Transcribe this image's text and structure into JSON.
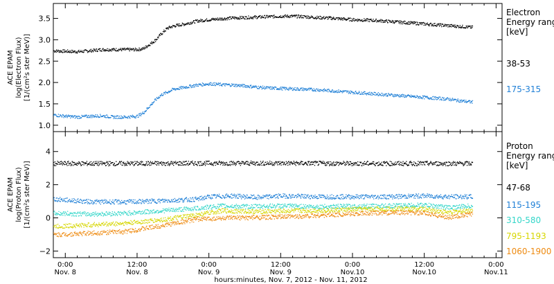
{
  "footer": {
    "xlabel": "hours:minutes, Nov.  7, 2012 - Nov. 11, 2012",
    "ticks": [
      {
        "time": "0:00",
        "date": "Nov. 8",
        "h": 0
      },
      {
        "time": "12:00",
        "date": "Nov. 8",
        "h": 12
      },
      {
        "time": "0:00",
        "date": "Nov. 9",
        "h": 24
      },
      {
        "time": "12:00",
        "date": "Nov. 9",
        "h": 36
      },
      {
        "time": "0:00",
        "date": "Nov.10",
        "h": 48
      },
      {
        "time": "12:00",
        "date": "Nov.10",
        "h": 60
      },
      {
        "time": "0:00",
        "date": "Nov.11",
        "h": 72
      }
    ]
  },
  "chart_data": [
    {
      "type": "scatter",
      "ylabel_lines": [
        "ACE EPAM",
        "log(Electron Flux)",
        "[1/(cm²s ster MeV)]"
      ],
      "legend_title_lines": [
        "Electron",
        "Energy range",
        "[keV]"
      ],
      "xlim_hours": [
        -2,
        73
      ],
      "ylim": [
        0.85,
        3.85
      ],
      "yticks": [
        "1.0",
        "1.5",
        "2.0",
        "2.5",
        "3.0",
        "3.5"
      ],
      "ytick_values": [
        1.0,
        1.5,
        2.0,
        2.5,
        3.0,
        3.5
      ],
      "series": [
        {
          "name": "38-53",
          "color": "#000000",
          "points": [
            [
              -2,
              2.75
            ],
            [
              0,
              2.74
            ],
            [
              2,
              2.73
            ],
            [
              4,
              2.75
            ],
            [
              6,
              2.78
            ],
            [
              8,
              2.78
            ],
            [
              10,
              2.78
            ],
            [
              12,
              2.78
            ],
            [
              13,
              2.8
            ],
            [
              14,
              2.9
            ],
            [
              15,
              3.0
            ],
            [
              16,
              3.15
            ],
            [
              17,
              3.28
            ],
            [
              18,
              3.33
            ],
            [
              20,
              3.38
            ],
            [
              22,
              3.45
            ],
            [
              24,
              3.48
            ],
            [
              26,
              3.5
            ],
            [
              28,
              3.52
            ],
            [
              30,
              3.53
            ],
            [
              32,
              3.54
            ],
            [
              34,
              3.55
            ],
            [
              36,
              3.56
            ],
            [
              38,
              3.56
            ],
            [
              40,
              3.55
            ],
            [
              42,
              3.53
            ],
            [
              44,
              3.52
            ],
            [
              46,
              3.5
            ],
            [
              48,
              3.48
            ],
            [
              50,
              3.47
            ],
            [
              52,
              3.46
            ],
            [
              54,
              3.44
            ],
            [
              56,
              3.42
            ],
            [
              58,
              3.4
            ],
            [
              60,
              3.38
            ],
            [
              62,
              3.36
            ],
            [
              64,
              3.34
            ],
            [
              66,
              3.32
            ],
            [
              68,
              3.3
            ]
          ]
        },
        {
          "name": "175-315",
          "color": "#1e7fd6",
          "points": [
            [
              -2,
              1.25
            ],
            [
              0,
              1.22
            ],
            [
              2,
              1.2
            ],
            [
              4,
              1.22
            ],
            [
              6,
              1.23
            ],
            [
              8,
              1.2
            ],
            [
              10,
              1.2
            ],
            [
              12,
              1.22
            ],
            [
              13,
              1.3
            ],
            [
              14,
              1.45
            ],
            [
              15,
              1.6
            ],
            [
              16,
              1.72
            ],
            [
              18,
              1.85
            ],
            [
              20,
              1.9
            ],
            [
              22,
              1.95
            ],
            [
              24,
              1.98
            ],
            [
              26,
              1.96
            ],
            [
              28,
              1.95
            ],
            [
              30,
              1.93
            ],
            [
              32,
              1.9
            ],
            [
              34,
              1.88
            ],
            [
              36,
              1.87
            ],
            [
              38,
              1.86
            ],
            [
              40,
              1.85
            ],
            [
              42,
              1.84
            ],
            [
              44,
              1.82
            ],
            [
              46,
              1.8
            ],
            [
              48,
              1.78
            ],
            [
              50,
              1.76
            ],
            [
              52,
              1.74
            ],
            [
              54,
              1.72
            ],
            [
              56,
              1.7
            ],
            [
              58,
              1.68
            ],
            [
              60,
              1.66
            ],
            [
              62,
              1.64
            ],
            [
              64,
              1.62
            ],
            [
              66,
              1.58
            ],
            [
              68,
              1.55
            ]
          ]
        }
      ]
    },
    {
      "type": "scatter",
      "ylabel_lines": [
        "ACE EPAM",
        "log(Proton Flux)",
        "[1/(cm²s ster MeV)]"
      ],
      "legend_title_lines": [
        "Proton",
        "Energy range",
        "[keV]"
      ],
      "xlim_hours": [
        -2,
        73
      ],
      "ylim": [
        -2.4,
        5.2
      ],
      "yticks": [
        "−2",
        "0",
        "2",
        "4"
      ],
      "ytick_values": [
        -2,
        0,
        2,
        4
      ],
      "series": [
        {
          "name": "47-68",
          "color": "#000000",
          "points": [
            [
              -2,
              3.3
            ],
            [
              10,
              3.3
            ],
            [
              24,
              3.32
            ],
            [
              36,
              3.32
            ],
            [
              48,
              3.3
            ],
            [
              60,
              3.3
            ],
            [
              68,
              3.3
            ]
          ]
        },
        {
          "name": "115-195",
          "color": "#1e7fd6",
          "points": [
            [
              -2,
              1.15
            ],
            [
              4,
              1.0
            ],
            [
              10,
              0.98
            ],
            [
              16,
              1.05
            ],
            [
              22,
              1.15
            ],
            [
              24,
              1.3
            ],
            [
              28,
              1.35
            ],
            [
              32,
              1.25
            ],
            [
              36,
              1.35
            ],
            [
              42,
              1.3
            ],
            [
              48,
              1.3
            ],
            [
              54,
              1.3
            ],
            [
              60,
              1.35
            ],
            [
              64,
              1.3
            ],
            [
              68,
              1.3
            ]
          ]
        },
        {
          "name": "310-580",
          "color": "#33d6c9",
          "points": [
            [
              -2,
              0.3
            ],
            [
              4,
              0.25
            ],
            [
              10,
              0.3
            ],
            [
              16,
              0.45
            ],
            [
              22,
              0.6
            ],
            [
              26,
              0.75
            ],
            [
              30,
              0.7
            ],
            [
              36,
              0.75
            ],
            [
              42,
              0.7
            ],
            [
              48,
              0.72
            ],
            [
              54,
              0.75
            ],
            [
              60,
              0.8
            ],
            [
              64,
              0.65
            ],
            [
              68,
              0.75
            ]
          ]
        },
        {
          "name": "795-1193",
          "color": "#d6d600",
          "points": [
            [
              -2,
              -0.5
            ],
            [
              4,
              -0.4
            ],
            [
              10,
              -0.3
            ],
            [
              16,
              -0.1
            ],
            [
              22,
              0.2
            ],
            [
              26,
              0.45
            ],
            [
              32,
              0.4
            ],
            [
              38,
              0.45
            ],
            [
              44,
              0.48
            ],
            [
              50,
              0.55
            ],
            [
              56,
              0.58
            ],
            [
              60,
              0.55
            ],
            [
              64,
              0.35
            ],
            [
              68,
              0.5
            ]
          ]
        },
        {
          "name": "1060-1900",
          "color": "#ee8a10",
          "points": [
            [
              -2,
              -1.0
            ],
            [
              4,
              -0.9
            ],
            [
              10,
              -0.8
            ],
            [
              16,
              -0.45
            ],
            [
              22,
              -0.05
            ],
            [
              26,
              0.0
            ],
            [
              32,
              0.05
            ],
            [
              38,
              0.1
            ],
            [
              44,
              0.2
            ],
            [
              50,
              0.3
            ],
            [
              56,
              0.35
            ],
            [
              60,
              0.3
            ],
            [
              64,
              0.05
            ],
            [
              68,
              0.25
            ]
          ]
        }
      ]
    }
  ]
}
